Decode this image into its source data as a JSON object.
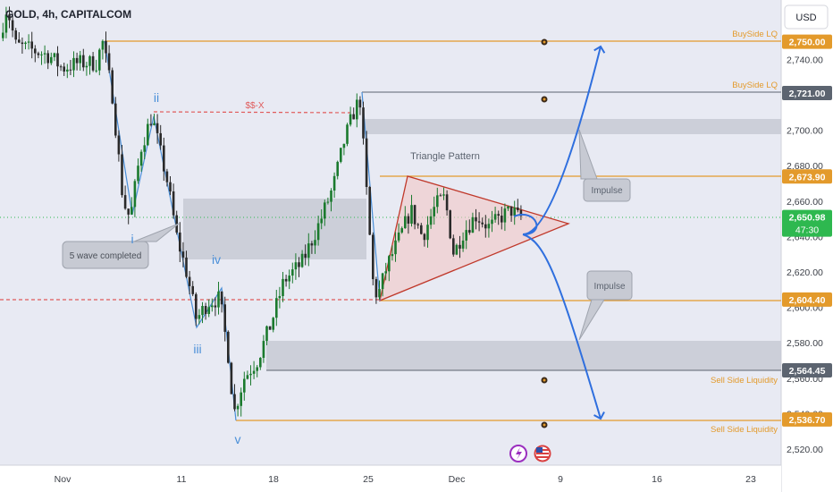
{
  "header": {
    "symbol_title": "GOLD, 4h, CAPITALCOM",
    "currency_button": "USD"
  },
  "colors": {
    "background": "#e8eaf3",
    "bull_candle": "#1b7a2e",
    "bear_candle": "#2a2a2a",
    "level_orange": "#e39a2b",
    "level_gray": "#5c6470",
    "dashed_red": "#e05a5a",
    "triangle_stroke": "#c0392b",
    "triangle_fill": "#f1c7c7",
    "zone_fill": "#c7cad3",
    "projection_blue": "#2f6fde",
    "wave_blue": "#4a8fd8",
    "current_price_green": "#2eb84f",
    "label_dark": "#3b3f47"
  },
  "chart_data": {
    "type": "candlestick",
    "title": "GOLD, 4h, CAPITALCOM",
    "x_tick_labels": [
      "Nov",
      "11",
      "18",
      "25",
      "Dec",
      "9",
      "16",
      "23"
    ],
    "y_ticks": [
      2520,
      2540,
      2560,
      2580,
      2600,
      2620,
      2640,
      2660,
      2680,
      2700,
      2720,
      2740
    ],
    "y_tick_labels": [
      "2,520.00",
      "2,540.00",
      "2,560.00",
      "2,580.00",
      "2,600.00",
      "2,620.00",
      "2,640.00",
      "2,660.00",
      "2,680.00",
      "2,700.00",
      "2,720.00",
      "2,740.00"
    ],
    "ylim": [
      2510,
      2760
    ],
    "price_tags": [
      {
        "value": "2,750.00",
        "color": "#e39a2b",
        "level": 2750
      },
      {
        "value": "2,721.00",
        "color": "#5c6470",
        "level": 2721
      },
      {
        "value": "2,673.90",
        "color": "#e39a2b",
        "level": 2673.9
      },
      {
        "value": "2,650.98",
        "color": "#2eb84f",
        "level": 2650.98,
        "sub": "47:30"
      },
      {
        "value": "2,604.40",
        "color": "#e39a2b",
        "level": 2604.4
      },
      {
        "value": "2,564.45",
        "color": "#5c6470",
        "level": 2564.45
      },
      {
        "value": "2,536.70",
        "color": "#e39a2b",
        "level": 2536.7
      }
    ],
    "level_labels": [
      {
        "text": "BuySide LQ",
        "level": 2750
      },
      {
        "text": "BuySide LQ",
        "level": 2721
      },
      {
        "text": "Sell Side Liquidity",
        "level": 2564.45
      },
      {
        "text": "Sell Side Liquidity",
        "level": 2536.7
      }
    ],
    "annotations": {
      "ssx": "$$-X",
      "triangle": "Triangle Pattern",
      "five_wave": "5 wave completed",
      "impulse_up": "Impulse",
      "impulse_down": "Impulse"
    },
    "wave_labels": [
      "ii",
      "i",
      "iv",
      "iii",
      "v"
    ],
    "current_price": 2650.98,
    "countdown": "47:30"
  }
}
